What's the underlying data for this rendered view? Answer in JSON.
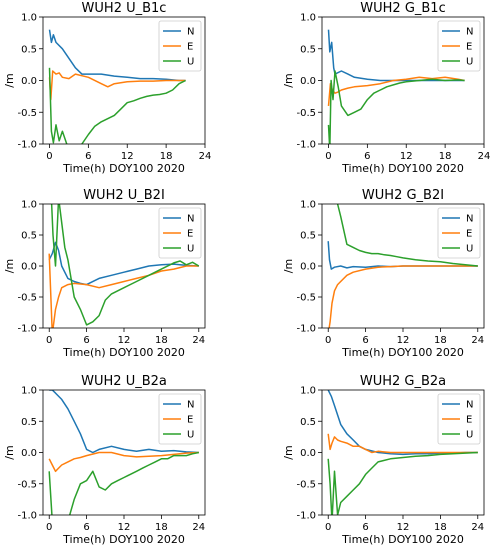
{
  "colors": {
    "N": "#1f77b4",
    "E": "#ff7f0e",
    "U": "#2ca02c"
  },
  "chart_data": [
    {
      "type": "line",
      "title": "WUH2 U_B1c",
      "xlabel": "Time(h) DOY100 2020",
      "ylabel": "/m",
      "xlim": [
        -1,
        24
      ],
      "ylim": [
        -1.0,
        1.0
      ],
      "xticks": [
        "0",
        "6",
        "12",
        "18",
        "24"
      ],
      "yticks": [
        "-1.0",
        "-0.5",
        "0.0",
        "0.5",
        "1.0"
      ],
      "legend": "top-right",
      "grid": false,
      "series": [
        {
          "name": "N",
          "color": "#1f77b4",
          "x": [
            0,
            0.3,
            0.6,
            1,
            2,
            3,
            4,
            5,
            6,
            8,
            10,
            12,
            14,
            16,
            18,
            20,
            21
          ],
          "y": [
            0.8,
            0.6,
            0.72,
            0.6,
            0.5,
            0.35,
            0.2,
            0.1,
            0.1,
            0.1,
            0.07,
            0.05,
            0.03,
            0.03,
            0.02,
            0.0,
            0.0
          ]
        },
        {
          "name": "E",
          "color": "#ff7f0e",
          "x": [
            0,
            0.2,
            0.5,
            1,
            1.5,
            2,
            3,
            4,
            6,
            8,
            9,
            10,
            12,
            14,
            16,
            18,
            20,
            21
          ],
          "y": [
            0.05,
            -0.3,
            0.15,
            0.1,
            0.12,
            0.05,
            0.03,
            0.1,
            0.05,
            -0.05,
            -0.1,
            -0.05,
            -0.02,
            -0.01,
            -0.01,
            0.0,
            0.0,
            0.0
          ]
        },
        {
          "name": "U",
          "color": "#2ca02c",
          "x": [
            0,
            0.3,
            0.6,
            1,
            1.5,
            2,
            3,
            4,
            5,
            6,
            7,
            8,
            10,
            11,
            12,
            13,
            14,
            15,
            16,
            17,
            18,
            19,
            20,
            21
          ],
          "y": [
            0.2,
            -0.8,
            -0.98,
            -0.7,
            -0.95,
            -0.8,
            -1.1,
            -1.2,
            -1.0,
            -0.85,
            -0.72,
            -0.65,
            -0.55,
            -0.45,
            -0.35,
            -0.32,
            -0.28,
            -0.25,
            -0.23,
            -0.22,
            -0.2,
            -0.15,
            -0.05,
            0.0
          ]
        }
      ]
    },
    {
      "type": "line",
      "title": "WUH2 G_B1c",
      "xlabel": "Time(h) DOY100 2020",
      "ylabel": "/m",
      "xlim": [
        -1,
        24
      ],
      "ylim": [
        -1.0,
        1.0
      ],
      "xticks": [
        "0",
        "6",
        "12",
        "18",
        "24"
      ],
      "yticks": [
        "-1.0",
        "-0.5",
        "0.0",
        "0.5",
        "1.0"
      ],
      "legend": "top-right",
      "grid": false,
      "series": [
        {
          "name": "N",
          "color": "#1f77b4",
          "x": [
            0,
            0.2,
            0.5,
            0.8,
            1,
            2,
            3,
            4,
            6,
            8,
            10,
            12,
            14,
            16,
            18,
            20,
            21
          ],
          "y": [
            0.8,
            0.45,
            0.6,
            0.2,
            0.1,
            0.15,
            0.1,
            0.05,
            0.02,
            0.0,
            0.0,
            0.0,
            0.0,
            0.0,
            0.0,
            0.0,
            0.0
          ]
        },
        {
          "name": "E",
          "color": "#ff7f0e",
          "x": [
            0,
            0.3,
            0.6,
            1,
            1.5,
            2,
            3,
            4,
            6,
            8,
            10,
            12,
            14,
            16,
            18,
            20,
            21
          ],
          "y": [
            -0.4,
            -0.05,
            -0.15,
            -0.2,
            -0.18,
            -0.15,
            -0.12,
            -0.1,
            -0.08,
            -0.05,
            0.0,
            0.02,
            0.05,
            0.03,
            0.05,
            0.02,
            0.0
          ]
        },
        {
          "name": "U",
          "color": "#2ca02c",
          "x": [
            0,
            0.2,
            0.4,
            0.7,
            1,
            1.5,
            2,
            3,
            4,
            5,
            6,
            7,
            8,
            9,
            10,
            11,
            12,
            14,
            16,
            18,
            20,
            21
          ],
          "y": [
            -0.7,
            -1.1,
            0.0,
            -0.3,
            0.15,
            -0.1,
            -0.4,
            -0.55,
            -0.5,
            -0.45,
            -0.3,
            -0.2,
            -0.15,
            -0.1,
            -0.07,
            -0.04,
            -0.02,
            0.0,
            0.02,
            0.0,
            0.01,
            0.0
          ]
        }
      ]
    },
    {
      "type": "line",
      "title": "WUH2 U_B2I",
      "xlabel": "Time(h) DOY100 2020",
      "ylabel": "/m",
      "xlim": [
        -1,
        25
      ],
      "ylim": [
        -1.0,
        1.0
      ],
      "xticks": [
        "0",
        "6",
        "12",
        "18",
        "24"
      ],
      "yticks": [
        "-1.0",
        "-0.5",
        "0.0",
        "0.5",
        "1.0"
      ],
      "legend": "top-right",
      "grid": false,
      "series": [
        {
          "name": "N",
          "color": "#1f77b4",
          "x": [
            0,
            0.5,
            1,
            1.5,
            2,
            3,
            4,
            5,
            6,
            8,
            10,
            12,
            14,
            16,
            18,
            20,
            22,
            24
          ],
          "y": [
            0.1,
            0.2,
            0.38,
            0.25,
            0.0,
            -0.2,
            -0.25,
            -0.28,
            -0.3,
            -0.2,
            -0.15,
            -0.1,
            -0.05,
            0.0,
            0.02,
            0.03,
            0.01,
            0.0
          ]
        },
        {
          "name": "E",
          "color": "#ff7f0e",
          "x": [
            0,
            0.5,
            1,
            1.5,
            2,
            3,
            4,
            6,
            8,
            10,
            12,
            14,
            16,
            18,
            20,
            22,
            24
          ],
          "y": [
            0.2,
            -1.1,
            -0.7,
            -0.5,
            -0.35,
            -0.3,
            -0.28,
            -0.3,
            -0.35,
            -0.3,
            -0.25,
            -0.2,
            -0.15,
            -0.08,
            -0.05,
            0.0,
            0.0
          ]
        },
        {
          "name": "U",
          "color": "#2ca02c",
          "x": [
            0,
            0.3,
            0.6,
            1,
            1.5,
            2,
            2.5,
            3,
            4,
            5,
            6,
            7,
            8,
            9,
            10,
            12,
            14,
            16,
            18,
            20,
            21,
            22,
            23,
            24
          ],
          "y": [
            1.0,
            1.2,
            0.5,
            0.0,
            1.1,
            0.7,
            0.3,
            0.1,
            -0.5,
            -0.7,
            -0.95,
            -0.9,
            -0.8,
            -0.55,
            -0.45,
            -0.35,
            -0.25,
            -0.15,
            -0.05,
            0.05,
            0.08,
            0.02,
            0.06,
            0.0
          ]
        }
      ]
    },
    {
      "type": "line",
      "title": "WUH2 G_B2I",
      "xlabel": "Time(h) DOY100 2020",
      "ylabel": "/m",
      "xlim": [
        -1,
        25
      ],
      "ylim": [
        -1.0,
        1.0
      ],
      "xticks": [
        "0",
        "6",
        "12",
        "18",
        "24"
      ],
      "yticks": [
        "-1.0",
        "-0.5",
        "0.0",
        "0.5",
        "1.0"
      ],
      "legend": "top-right",
      "grid": false,
      "series": [
        {
          "name": "N",
          "color": "#1f77b4",
          "x": [
            0,
            0.2,
            0.5,
            1,
            2,
            3,
            4,
            6,
            8,
            10,
            12,
            16,
            20,
            24
          ],
          "y": [
            0.4,
            0.1,
            -0.05,
            -0.02,
            0.0,
            -0.03,
            -0.01,
            -0.02,
            0.0,
            -0.01,
            0.0,
            0.0,
            0.0,
            0.0
          ]
        },
        {
          "name": "E",
          "color": "#ff7f0e",
          "x": [
            0,
            0.3,
            0.6,
            1,
            1.5,
            2,
            3,
            4,
            6,
            8,
            10,
            12,
            16,
            20,
            24
          ],
          "y": [
            -1.1,
            -0.9,
            -0.6,
            -0.4,
            -0.3,
            -0.25,
            -0.15,
            -0.1,
            -0.05,
            -0.02,
            -0.01,
            0.0,
            0.0,
            0.0,
            0.0
          ]
        },
        {
          "name": "U",
          "color": "#2ca02c",
          "x": [
            1,
            1.5,
            2,
            3,
            4,
            5,
            6,
            7,
            8,
            9,
            10,
            11,
            12,
            14,
            16,
            18,
            20,
            22,
            24
          ],
          "y": [
            1.2,
            1.0,
            0.8,
            0.35,
            0.3,
            0.25,
            0.22,
            0.2,
            0.2,
            0.18,
            0.17,
            0.15,
            0.13,
            0.1,
            0.08,
            0.07,
            0.04,
            0.02,
            0.0
          ]
        }
      ]
    },
    {
      "type": "line",
      "title": "WUH2 U_B2a",
      "xlabel": "Time(h) DOY100 2020",
      "ylabel": "/m",
      "xlim": [
        -1,
        25
      ],
      "ylim": [
        -1.0,
        1.0
      ],
      "xticks": [
        "0",
        "6",
        "12",
        "18",
        "24"
      ],
      "yticks": [
        "-1.0",
        "-0.5",
        "0.0",
        "0.5",
        "1.0"
      ],
      "legend": "top-right",
      "grid": false,
      "series": [
        {
          "name": "N",
          "color": "#1f77b4",
          "x": [
            0,
            0.5,
            1,
            2,
            3,
            4,
            5,
            6,
            7,
            8,
            10,
            12,
            14,
            16,
            18,
            20,
            22,
            24
          ],
          "y": [
            1.0,
            1.0,
            0.95,
            0.85,
            0.7,
            0.5,
            0.3,
            0.05,
            0.0,
            0.05,
            0.1,
            0.05,
            0.02,
            0.05,
            0.02,
            0.03,
            0.01,
            0.0
          ]
        },
        {
          "name": "E",
          "color": "#ff7f0e",
          "x": [
            0,
            0.5,
            1,
            1.5,
            2,
            3,
            4,
            5,
            6,
            8,
            10,
            12,
            14,
            16,
            18,
            20,
            22,
            24
          ],
          "y": [
            -0.1,
            -0.2,
            -0.3,
            -0.25,
            -0.2,
            -0.15,
            -0.1,
            -0.08,
            -0.05,
            0.0,
            0.0,
            -0.05,
            -0.07,
            -0.06,
            -0.05,
            -0.03,
            -0.01,
            0.0
          ]
        },
        {
          "name": "U",
          "color": "#2ca02c",
          "x": [
            0,
            0.5,
            1,
            2,
            3,
            4,
            5,
            6,
            7,
            8,
            9,
            10,
            11,
            12,
            13,
            14,
            15,
            16,
            17,
            18,
            19,
            20,
            21,
            22,
            23,
            24
          ],
          "y": [
            -0.3,
            -1.1,
            -1.2,
            -1.3,
            -1.1,
            -0.75,
            -0.5,
            -0.45,
            -0.3,
            -0.55,
            -0.6,
            -0.5,
            -0.45,
            -0.4,
            -0.35,
            -0.3,
            -0.25,
            -0.2,
            -0.15,
            -0.1,
            -0.1,
            -0.05,
            -0.05,
            -0.05,
            -0.02,
            0.0
          ]
        }
      ]
    },
    {
      "type": "line",
      "title": "WUH2 G_B2a",
      "xlabel": "Time(h) DOY100 2020",
      "ylabel": "/m",
      "xlim": [
        -1,
        25
      ],
      "ylim": [
        -1.0,
        1.0
      ],
      "xticks": [
        "0",
        "6",
        "12",
        "18",
        "24"
      ],
      "yticks": [
        "-1.0",
        "-0.5",
        "0.0",
        "0.5",
        "1.0"
      ],
      "legend": "top-right",
      "grid": false,
      "series": [
        {
          "name": "N",
          "color": "#1f77b4",
          "x": [
            0,
            0.5,
            1,
            1.5,
            2,
            3,
            4,
            5,
            6,
            8,
            10,
            12,
            14,
            16,
            18,
            20,
            22,
            24
          ],
          "y": [
            1.0,
            0.9,
            0.75,
            0.6,
            0.45,
            0.3,
            0.2,
            0.1,
            0.05,
            0.0,
            -0.02,
            -0.03,
            -0.02,
            -0.02,
            -0.01,
            -0.01,
            0.0,
            0.0
          ]
        },
        {
          "name": "E",
          "color": "#ff7f0e",
          "x": [
            0,
            0.3,
            0.6,
            1,
            1.5,
            2,
            3,
            4,
            5,
            6,
            7,
            8,
            10,
            12,
            14,
            16,
            18,
            20,
            22,
            24
          ],
          "y": [
            0.3,
            0.05,
            0.15,
            0.25,
            0.2,
            0.18,
            0.15,
            0.1,
            0.1,
            0.05,
            0.0,
            0.02,
            0.0,
            0.0,
            0.0,
            0.0,
            0.0,
            0.0,
            0.0,
            0.0
          ]
        },
        {
          "name": "U",
          "color": "#2ca02c",
          "x": [
            0,
            0.3,
            0.6,
            1,
            1.5,
            2,
            3,
            4,
            5,
            6,
            7,
            8,
            10,
            12,
            14,
            16,
            18,
            20,
            22,
            24
          ],
          "y": [
            -0.1,
            -0.5,
            -1.1,
            -0.3,
            -1.0,
            -0.8,
            -0.7,
            -0.6,
            -0.5,
            -0.35,
            -0.25,
            -0.15,
            -0.1,
            -0.08,
            -0.06,
            -0.05,
            -0.03,
            -0.02,
            -0.01,
            0.0
          ]
        }
      ]
    }
  ]
}
